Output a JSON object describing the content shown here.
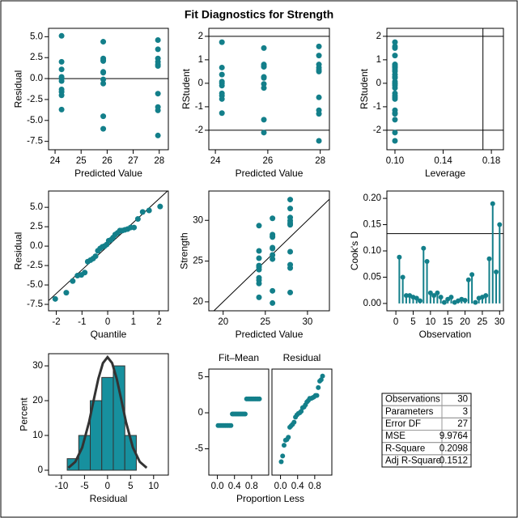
{
  "title": "Fit Diagnostics for Strength",
  "chart_data": [
    {
      "type": "scatter",
      "xlabel": "Predicted Value",
      "ylabel": "Residual",
      "color": "#137f8a",
      "xlim": [
        23.75,
        28.35
      ],
      "ylim": [
        -8.5,
        6.0
      ],
      "xticks": [
        24,
        25,
        26,
        27,
        28
      ],
      "yticks": [
        -7.5,
        {
          "value": -5,
          "label": "-5.0"
        },
        -2.5,
        {
          "value": 0,
          "label": "0.0"
        },
        2.5,
        {
          "value": 5,
          "label": "5.0"
        }
      ],
      "hlines": [
        0
      ],
      "x": [
        24.25,
        24.25,
        24.25,
        24.25,
        24.25,
        24.25,
        24.25,
        24.25,
        24.25,
        24.25,
        25.85,
        25.85,
        25.85,
        25.85,
        25.85,
        25.85,
        25.85,
        25.85,
        25.85,
        25.85,
        27.95,
        27.95,
        27.95,
        27.95,
        27.95,
        27.95,
        27.95,
        27.95,
        27.95,
        27.95
      ],
      "values": [
        5.1,
        2.0,
        1.1,
        0.0,
        -0.3,
        -1.3,
        -1.6,
        -2.0,
        -3.7,
        0.2,
        4.4,
        2.4,
        2.2,
        2.1,
        0.8,
        0.7,
        -0.1,
        -0.6,
        -4.5,
        -6.0,
        4.6,
        3.5,
        2.4,
        2.0,
        1.7,
        1.5,
        -1.8,
        -3.4,
        -3.8,
        -6.8
      ]
    },
    {
      "type": "scatter",
      "xlabel": "Predicted Value",
      "ylabel": "RStudent",
      "color": "#137f8a",
      "xlim": [
        23.75,
        28.35
      ],
      "ylim": [
        -2.83,
        2.34
      ],
      "xticks": [
        24,
        26,
        28
      ],
      "yticks": [
        -2,
        -1,
        0,
        1,
        2
      ],
      "hlines": [
        -2,
        2
      ],
      "x": [
        24.25,
        24.25,
        24.25,
        24.25,
        24.25,
        24.25,
        24.25,
        24.25,
        24.25,
        24.25,
        25.85,
        25.85,
        25.85,
        25.85,
        25.85,
        25.85,
        25.85,
        25.85,
        25.85,
        25.85,
        27.95,
        27.95,
        27.95,
        27.95,
        27.95,
        27.95,
        27.95,
        27.95,
        27.95,
        27.95
      ],
      "values": [
        1.75,
        0.67,
        0.37,
        0.0,
        -0.1,
        -0.43,
        -0.53,
        -0.67,
        -1.27,
        0.07,
        1.5,
        0.8,
        0.73,
        0.7,
        0.27,
        0.23,
        -0.03,
        -0.2,
        -1.55,
        -2.1,
        1.57,
        1.18,
        0.8,
        0.67,
        0.57,
        0.5,
        -0.6,
        -1.15,
        -1.3,
        -2.45
      ]
    },
    {
      "type": "scatter",
      "xlabel": "Leverage",
      "ylabel": "RStudent",
      "color": "#137f8a",
      "xlim": [
        0.0933,
        0.19
      ],
      "ylim": [
        -2.83,
        2.34
      ],
      "xticks": [
        {
          "value": 0.1,
          "label": "0.10"
        },
        0.14,
        0.18
      ],
      "yticks": [
        -2,
        -1,
        0,
        1,
        2
      ],
      "hlines": [
        -2,
        2
      ],
      "vlines": [
        0.173
      ],
      "x": [
        0.1,
        0.1,
        0.1,
        0.1,
        0.1,
        0.1,
        0.1,
        0.1,
        0.1,
        0.1,
        0.1,
        0.1,
        0.1,
        0.1,
        0.1,
        0.1,
        0.1,
        0.1,
        0.1,
        0.1,
        0.1,
        0.1,
        0.1,
        0.1,
        0.1,
        0.1,
        0.1,
        0.1,
        0.1,
        0.1
      ],
      "values": [
        1.75,
        0.67,
        0.37,
        0.0,
        -0.1,
        -0.43,
        -0.53,
        -0.67,
        -1.27,
        0.07,
        1.5,
        0.8,
        0.73,
        0.7,
        0.27,
        0.23,
        -0.03,
        -0.2,
        -1.55,
        -2.1,
        1.57,
        1.18,
        0.8,
        0.67,
        0.57,
        0.5,
        -0.6,
        -1.15,
        -1.3,
        -2.45
      ]
    },
    {
      "type": "scatter",
      "xlabel": "Quantile",
      "ylabel": "Residual",
      "color": "#137f8a",
      "xlim": [
        -2.3,
        2.36
      ],
      "ylim": [
        -8.33,
        7.1
      ],
      "xticks": [
        -2,
        -1,
        0,
        1,
        2
      ],
      "yticks": [
        -7.5,
        {
          "value": -5,
          "label": "-5.0"
        },
        -2.5,
        {
          "value": 0,
          "label": "0.0"
        },
        2.5,
        {
          "value": 5,
          "label": "5.0"
        }
      ],
      "refline": {
        "intercept": 0,
        "slope": 3.05
      },
      "x": [
        -2.04,
        -1.61,
        -1.36,
        -1.175,
        -1.024,
        -0.893,
        -0.776,
        -0.668,
        -0.567,
        -0.473,
        -0.382,
        -0.294,
        -0.209,
        -0.125,
        -0.041,
        0.041,
        0.125,
        0.209,
        0.294,
        0.382,
        0.473,
        0.567,
        0.668,
        0.776,
        0.893,
        1.024,
        1.175,
        1.36,
        1.61,
        2.04
      ],
      "values": [
        -6.8,
        -6.0,
        -4.5,
        -3.8,
        -3.7,
        -3.4,
        -2.0,
        -1.8,
        -1.6,
        -1.3,
        -0.6,
        -0.3,
        -0.1,
        0.0,
        0.2,
        0.7,
        0.8,
        1.1,
        1.5,
        1.7,
        2.0,
        2.0,
        2.1,
        2.2,
        2.4,
        2.4,
        3.5,
        4.4,
        4.6,
        5.1
      ]
    },
    {
      "type": "scatter",
      "xlabel": "Predicted Value",
      "ylabel": "Strength",
      "color": "#137f8a",
      "xlim": [
        18.3,
        32.6
      ],
      "ylim": [
        18.9,
        33.6
      ],
      "xticks": [
        20,
        25,
        30
      ],
      "yticks": [
        20,
        25,
        30
      ],
      "refline": {
        "intercept": 0,
        "slope": 1
      },
      "x": [
        24.25,
        24.25,
        24.25,
        24.25,
        24.25,
        24.25,
        24.25,
        24.25,
        24.25,
        24.25,
        25.85,
        25.85,
        25.85,
        25.85,
        25.85,
        25.85,
        25.85,
        25.85,
        25.85,
        25.85,
        27.95,
        27.95,
        27.95,
        27.95,
        27.95,
        27.95,
        27.95,
        27.95,
        27.95,
        27.95
      ],
      "values": [
        29.35,
        26.25,
        25.35,
        24.25,
        23.95,
        22.95,
        22.65,
        22.25,
        20.55,
        24.45,
        30.25,
        28.25,
        28.05,
        27.95,
        26.65,
        26.55,
        25.75,
        25.25,
        21.35,
        19.85,
        32.55,
        31.45,
        30.35,
        29.95,
        29.65,
        29.45,
        26.15,
        24.55,
        24.15,
        21.15
      ]
    },
    {
      "type": "needle",
      "xlabel": "Observation",
      "ylabel": "Cook's D",
      "color": "#137f8a",
      "xlim": [
        -2.6,
        31.1
      ],
      "ylim": [
        -0.014,
        0.214
      ],
      "xticks": [
        0,
        5,
        10,
        15,
        20,
        25,
        30
      ],
      "yticks": [
        {
          "value": 0,
          "label": "0.00"
        },
        {
          "value": 0.05,
          "label": "0.05"
        },
        {
          "value": 0.1,
          "label": "0.10"
        },
        {
          "value": 0.15,
          "label": "0.15"
        },
        {
          "value": 0.2,
          "label": "0.20"
        }
      ],
      "hlines": [
        0.133
      ],
      "x": [
        1,
        2,
        3,
        4,
        5,
        6,
        7,
        8,
        9,
        10,
        11,
        12,
        13,
        14,
        15,
        16,
        17,
        18,
        19,
        20,
        21,
        22,
        23,
        24,
        25,
        26,
        27,
        28,
        29,
        30
      ],
      "values": [
        0.088,
        0.05,
        0.015,
        0.015,
        0.012,
        0.01,
        0.005,
        0.105,
        0.08,
        0.02,
        0.015,
        0.02,
        0.012,
        0.002,
        0.008,
        0.012,
        0.002,
        0.005,
        0.008,
        0.006,
        0.045,
        0.055,
        0.002,
        0.01,
        0.012,
        0.015,
        0.085,
        0.19,
        0.06,
        0.15
      ]
    },
    {
      "type": "histogram",
      "xlabel": "Residual",
      "ylabel": "Percent",
      "color": "#17909e",
      "xlim": [
        -12.8,
        13.2
      ],
      "ylim": [
        -1.4,
        33.5
      ],
      "xticks": [
        -10,
        -5,
        0,
        5,
        10
      ],
      "yticks": [
        0,
        10,
        20,
        30
      ],
      "bins": [
        -8.75,
        -6.25,
        -3.75,
        -1.25,
        1.25,
        3.75,
        6.25
      ],
      "values": [
        3.33,
        10,
        20,
        26.67,
        30,
        10
      ],
      "curve": {
        "color": "#333333",
        "x": [
          -8.5,
          -7,
          -5.5,
          -4,
          -3,
          -2,
          -1,
          0,
          1,
          2,
          3,
          4,
          5.5,
          7,
          8.5
        ],
        "y": [
          0.7,
          2.41,
          6.53,
          13.9,
          20.2,
          26.3,
          30.8,
          32.5,
          30.8,
          26.3,
          20.2,
          13.9,
          6.53,
          2.41,
          0.7
        ]
      }
    },
    {
      "type": "spread",
      "xlabel": "Proportion Less",
      "color": "#137f8a",
      "xlim": [
        -0.2,
        1.2
      ],
      "ylim": [
        -8.65,
        6.07
      ],
      "xticks": [
        {
          "value": 0,
          "label": "0.0"
        },
        0.4,
        0.8
      ],
      "yticks": [
        -5,
        0,
        5
      ],
      "x": [
        0.017,
        0.05,
        0.083,
        0.117,
        0.15,
        0.183,
        0.217,
        0.25,
        0.283,
        0.317,
        0.35,
        0.383,
        0.417,
        0.45,
        0.483,
        0.517,
        0.55,
        0.583,
        0.617,
        0.65,
        0.683,
        0.717,
        0.75,
        0.783,
        0.817,
        0.85,
        0.883,
        0.917,
        0.95,
        0.983
      ],
      "series": [
        {
          "name": "Fit–Mean",
          "values": [
            -1.77,
            -1.77,
            -1.77,
            -1.77,
            -1.77,
            -1.77,
            -1.77,
            -1.77,
            -1.77,
            -1.77,
            -0.17,
            -0.17,
            -0.17,
            -0.17,
            -0.17,
            -0.17,
            -0.17,
            -0.17,
            -0.17,
            -0.17,
            1.93,
            1.93,
            1.93,
            1.93,
            1.93,
            1.93,
            1.93,
            1.93,
            1.93,
            1.93
          ]
        },
        {
          "name": "Residual",
          "values": [
            -6.8,
            -6.0,
            -4.5,
            -3.8,
            -3.7,
            -3.4,
            -2.0,
            -1.8,
            -1.6,
            -1.3,
            -0.6,
            -0.3,
            -0.1,
            0.0,
            0.2,
            0.7,
            0.8,
            1.1,
            1.5,
            1.7,
            2.0,
            2.0,
            2.1,
            2.2,
            2.4,
            2.4,
            3.5,
            4.4,
            4.6,
            5.1
          ]
        }
      ]
    },
    {
      "type": "table",
      "rows": [
        [
          "Observations",
          30
        ],
        [
          "Parameters",
          3
        ],
        [
          "Error DF",
          27
        ],
        [
          "MSE",
          9.9764
        ],
        [
          "R-Square",
          0.2098
        ],
        [
          "Adj R-Square",
          0.1512
        ]
      ]
    }
  ]
}
